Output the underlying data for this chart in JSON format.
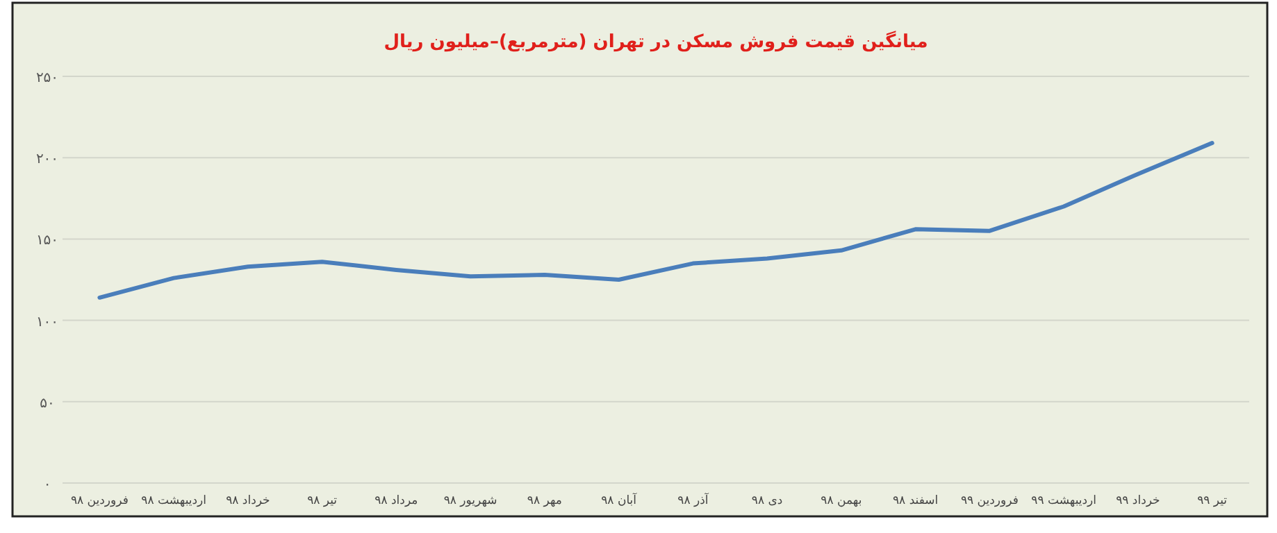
{
  "chart_data": {
    "type": "line",
    "title": "میانگین قیمت فروش مسکن در تهران  (مترمربع)–میلیون ریال",
    "categories": [
      "فروردین ۹۸",
      "اردیبهشت ۹۸",
      "خرداد ۹۸",
      "تیر ۹۸",
      "مرداد ۹۸",
      "شهریور ۹۸",
      "مهر ۹۸",
      "آبان ۹۸",
      "آذر ۹۸",
      "دی ۹۸",
      "بهمن ۹۸",
      "اسفند ۹۸",
      "فروردین ۹۹",
      "اردیبهشت ۹۹",
      "خرداد ۹۹",
      "تیر ۹۹"
    ],
    "series": [
      {
        "color": "#4a7ebb",
        "values": [
          114,
          126,
          133,
          136,
          131,
          127,
          128,
          125,
          135,
          138,
          143,
          156,
          155,
          170,
          190,
          209
        ]
      }
    ],
    "ylim": [
      0,
      250
    ],
    "yticks": [
      {
        "value": 0,
        "label": "۰"
      },
      {
        "value": 50,
        "label": "۵۰"
      },
      {
        "value": 100,
        "label": "۱۰۰"
      },
      {
        "value": 150,
        "label": "۱۵۰"
      },
      {
        "value": 200,
        "label": "۲۰۰"
      },
      {
        "value": 250,
        "label": "۲۵۰"
      }
    ],
    "grid": "y"
  }
}
